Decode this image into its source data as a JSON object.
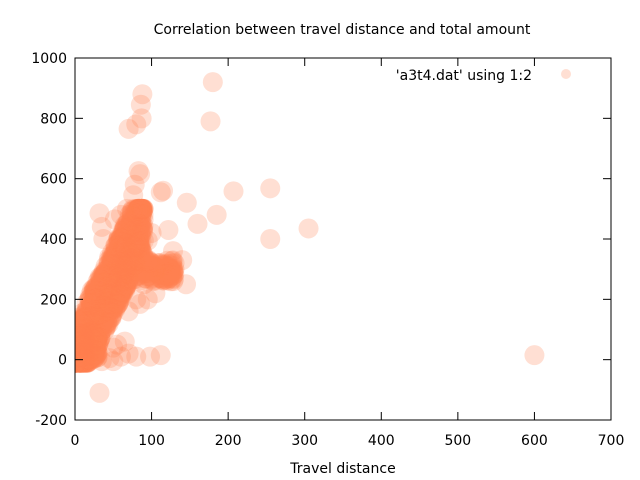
{
  "chart_data": {
    "type": "scatter",
    "title": "Correlation between travel distance and total amount",
    "xlabel": "Travel distance",
    "ylabel": "",
    "xlim": [
      0,
      700
    ],
    "ylim": [
      -200,
      1000
    ],
    "x_ticks": [
      "0",
      "100",
      "200",
      "300",
      "400",
      "500",
      "600",
      "700"
    ],
    "y_ticks": [
      "-200",
      "0",
      "200",
      "400",
      "600",
      "800",
      "1000"
    ],
    "x_tick_values": [
      0,
      100,
      200,
      300,
      400,
      500,
      600,
      700
    ],
    "y_tick_values": [
      -200,
      0,
      200,
      400,
      600,
      800,
      1000
    ],
    "grid": false,
    "legend_position": "top-right",
    "series": [
      {
        "name": "'a3t4.dat' using 1:2",
        "color": "#ff7f50",
        "points": [
          [
            600,
            15
          ],
          [
            305,
            435
          ],
          [
            255,
            568
          ],
          [
            255,
            400
          ],
          [
            207,
            558
          ],
          [
            185,
            480
          ],
          [
            180,
            920
          ],
          [
            177,
            790
          ],
          [
            160,
            450
          ],
          [
            146,
            520
          ],
          [
            140,
            330
          ],
          [
            145,
            250
          ],
          [
            130,
            300
          ],
          [
            128,
            360
          ],
          [
            122,
            430
          ],
          [
            115,
            560
          ],
          [
            112,
            555
          ],
          [
            112,
            15
          ],
          [
            98,
            10
          ],
          [
            88,
            880
          ],
          [
            86,
            845
          ],
          [
            87,
            800
          ],
          [
            80,
            780
          ],
          [
            70,
            765
          ],
          [
            83,
            625
          ],
          [
            85,
            615
          ],
          [
            78,
            580
          ],
          [
            76,
            545
          ],
          [
            86,
            500
          ],
          [
            68,
            500
          ],
          [
            60,
            480
          ],
          [
            52,
            465
          ],
          [
            32,
            485
          ],
          [
            37,
            400
          ],
          [
            35,
            440
          ],
          [
            22,
            230
          ],
          [
            20,
            215
          ],
          [
            28,
            100
          ],
          [
            33,
            70
          ],
          [
            5,
            140
          ],
          [
            55,
            50
          ],
          [
            65,
            60
          ],
          [
            70,
            20
          ],
          [
            80,
            10
          ],
          [
            60,
            10
          ],
          [
            45,
            5
          ],
          [
            50,
            -5
          ],
          [
            35,
            -5
          ],
          [
            32,
            -110
          ],
          [
            50,
            40
          ],
          [
            110,
            320
          ],
          [
            120,
            310
          ],
          [
            100,
            300
          ],
          [
            105,
            290
          ],
          [
            110,
            280
          ],
          [
            95,
            200
          ],
          [
            85,
            185
          ],
          [
            70,
            160
          ],
          [
            85,
            320
          ],
          [
            90,
            340
          ],
          [
            100,
            420
          ],
          [
            95,
            395
          ],
          [
            105,
            220
          ],
          [
            115,
            300
          ],
          [
            125,
            290
          ],
          [
            130,
            320
          ],
          [
            125,
            260
          ],
          [
            75,
            305
          ],
          [
            65,
            270
          ],
          [
            60,
            300
          ],
          [
            90,
            250
          ],
          [
            80,
            200
          ]
        ]
      }
    ]
  }
}
